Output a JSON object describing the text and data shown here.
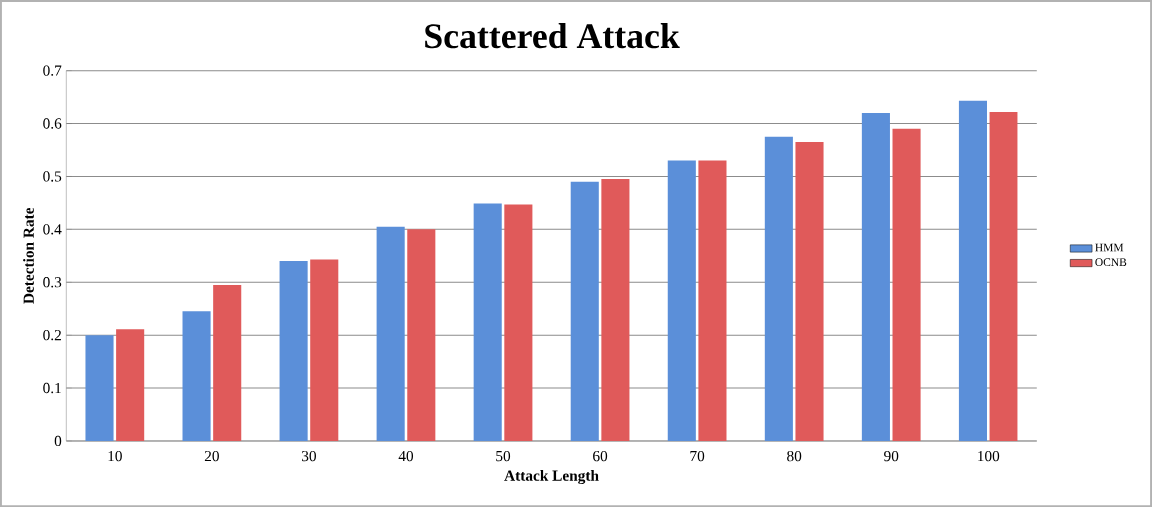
{
  "chart_data": {
    "type": "bar",
    "title": "Scattered Attack",
    "xlabel": "Attack Length",
    "ylabel": "Detection Rate",
    "categories": [
      "10",
      "20",
      "30",
      "40",
      "50",
      "60",
      "70",
      "80",
      "90",
      "100"
    ],
    "series": [
      {
        "name": "HMM",
        "color": "#5b8fd9",
        "values": [
          0.2,
          0.245,
          0.34,
          0.405,
          0.449,
          0.49,
          0.53,
          0.575,
          0.62,
          0.643
        ]
      },
      {
        "name": "OCNB",
        "color": "#e05a5a",
        "values": [
          0.211,
          0.295,
          0.343,
          0.4,
          0.447,
          0.495,
          0.53,
          0.565,
          0.59,
          0.622
        ]
      }
    ],
    "ylim": [
      0,
      0.7
    ],
    "yticks": [
      0,
      0.1,
      0.2,
      0.3,
      0.4,
      0.5,
      0.6,
      0.7
    ],
    "grid": "y",
    "legend": "right"
  }
}
